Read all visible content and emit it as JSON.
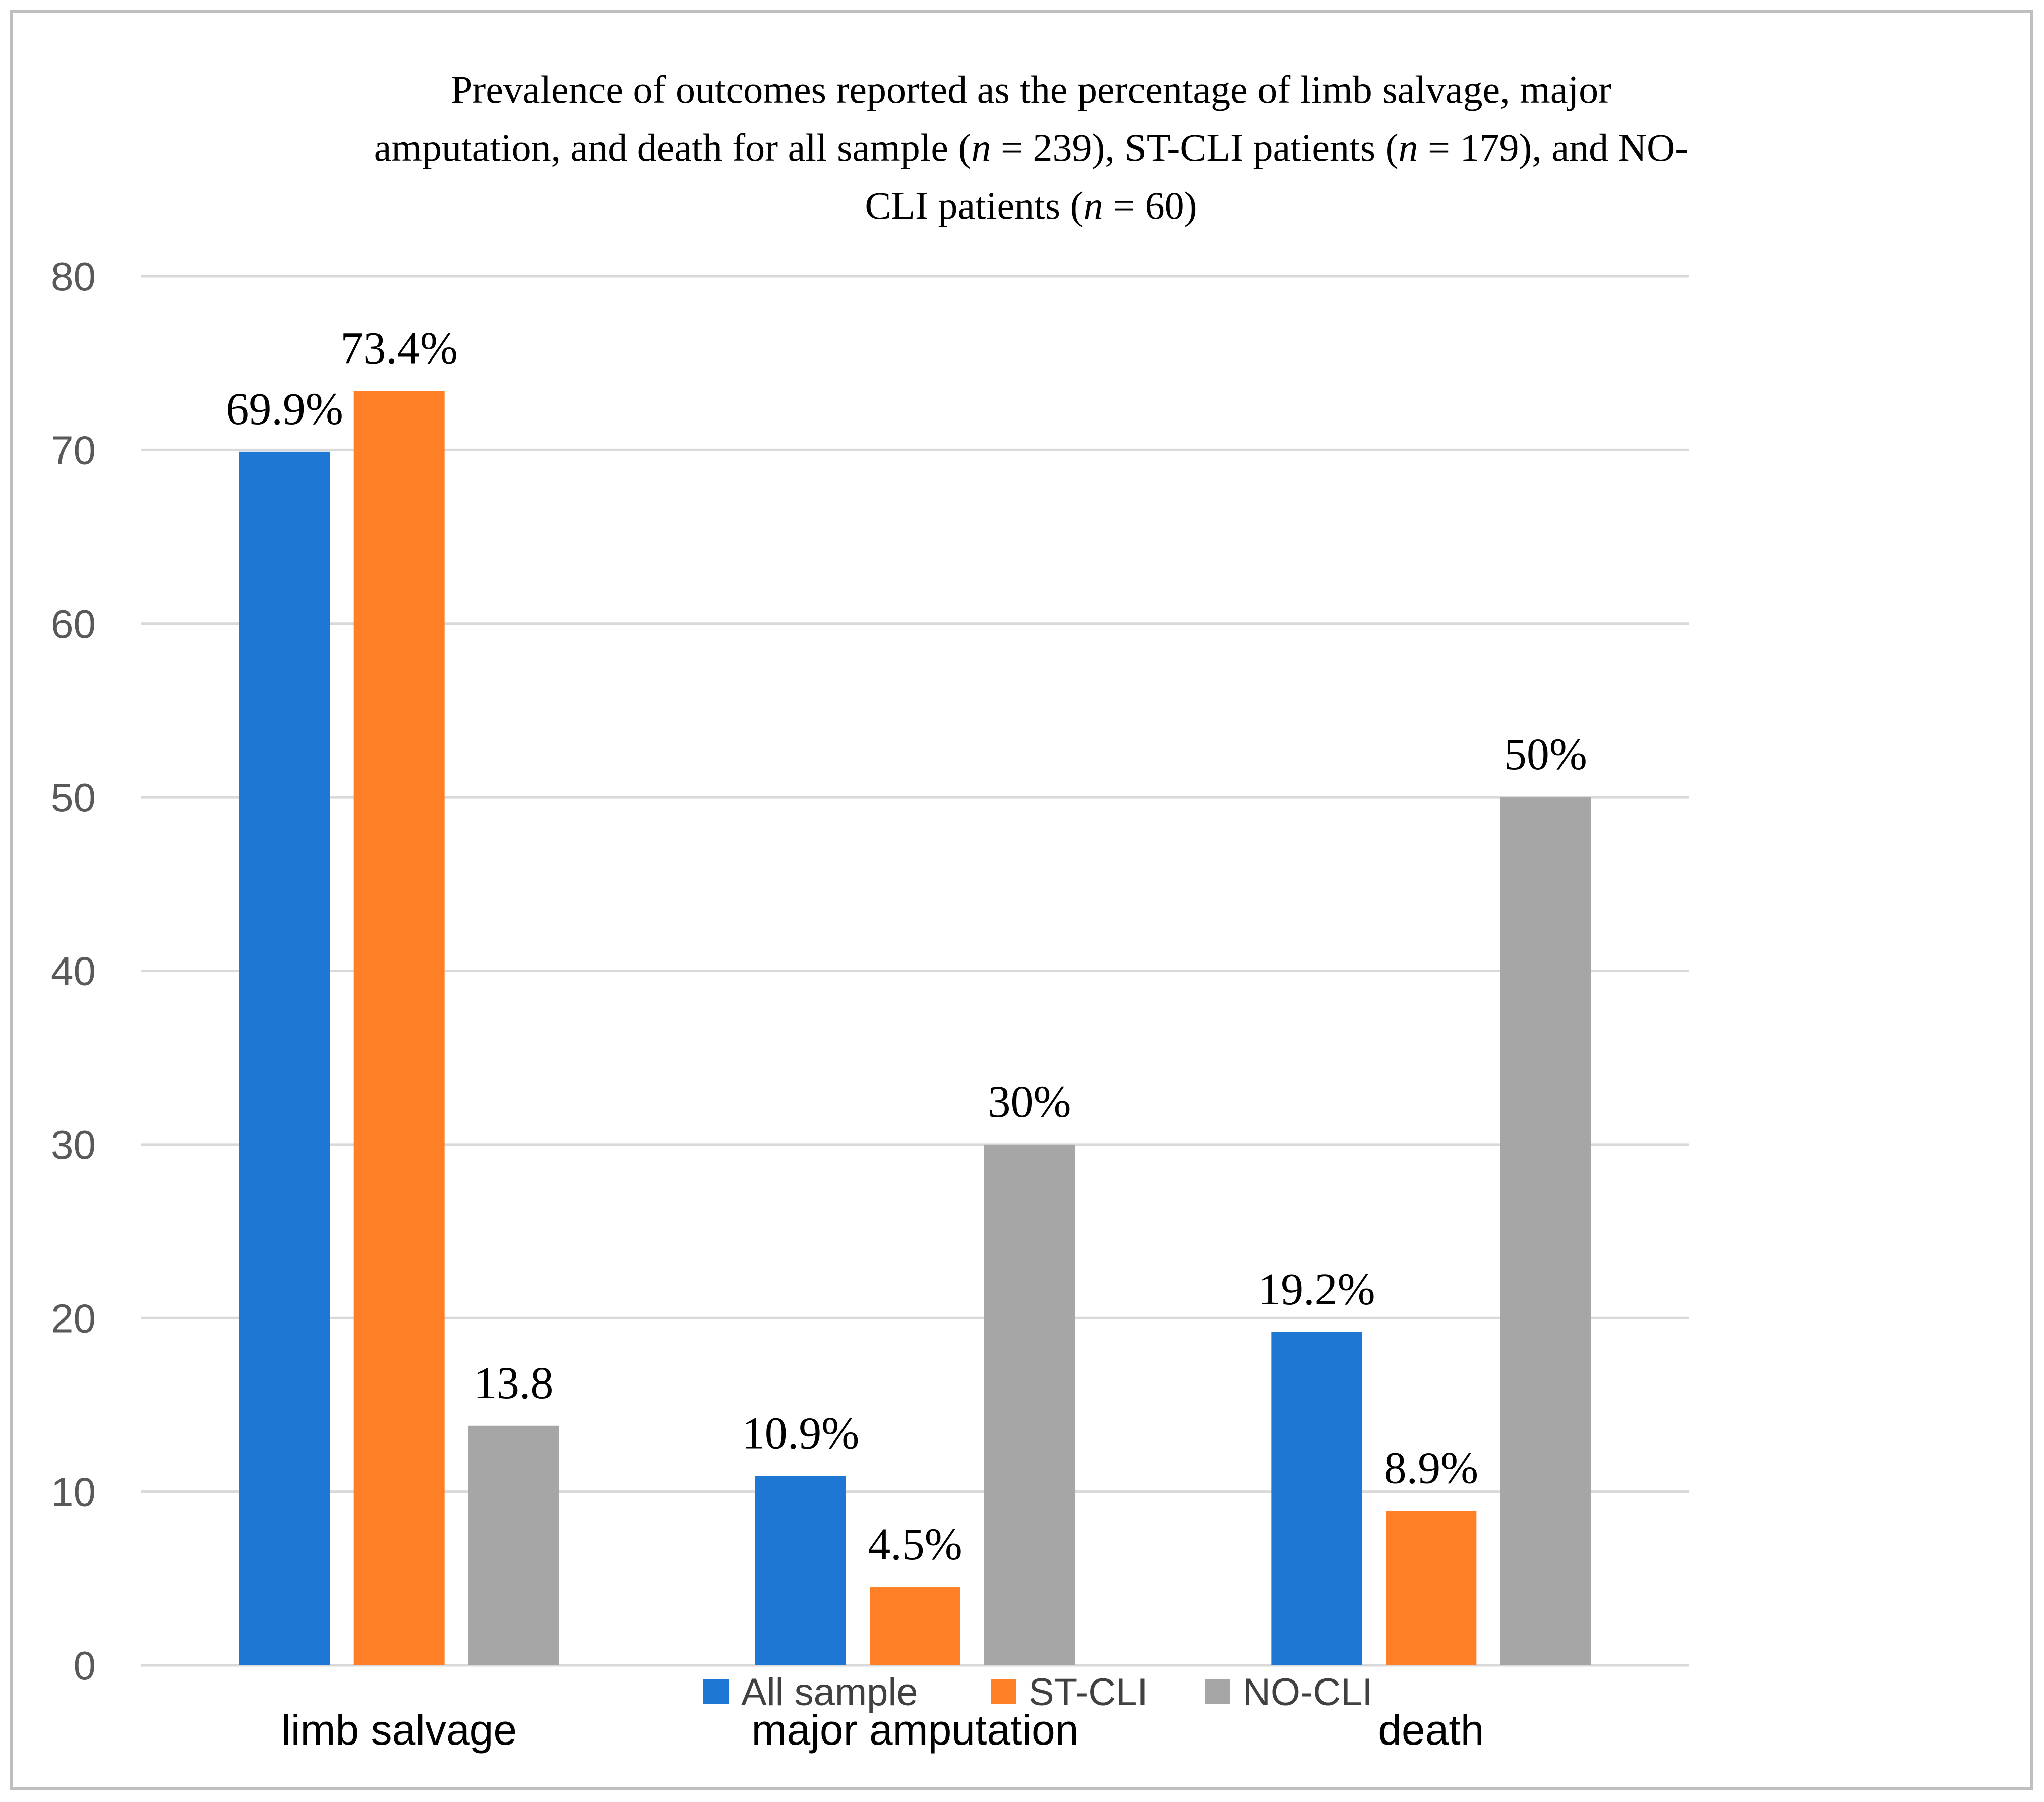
{
  "chart_data": {
    "type": "bar",
    "title": {
      "line1": "Prevalence of outcomes reported as the percentage of limb salvage, major",
      "line2_a": "amputation, and death for all sample (",
      "n": "n",
      "line2_b": " = 239), ST-CLI patients (",
      "line2_c": " = 179), and NO-",
      "line3_a": "CLI patients (",
      "line3_b": " = 60)"
    },
    "categories": [
      "limb salvage",
      "major amputation",
      "death"
    ],
    "series": [
      {
        "name": "All sample",
        "color": "#1f77d4",
        "values": [
          69.9,
          10.9,
          19.2
        ],
        "labels": [
          "69.9%",
          "10.9%",
          "19.2%"
        ]
      },
      {
        "name": "ST-CLI",
        "color": "#ff7f27",
        "values": [
          73.4,
          4.5,
          8.9
        ],
        "labels": [
          "73.4%",
          "4.5%",
          "8.9%"
        ]
      },
      {
        "name": "NO-CLI",
        "color": "#a6a6a6",
        "values": [
          13.8,
          30,
          50
        ],
        "labels": [
          "13.8",
          "30%",
          "50%"
        ]
      }
    ],
    "yticks": [
      0,
      10,
      20,
      30,
      40,
      50,
      60,
      70,
      80
    ],
    "ylim": [
      0,
      80
    ],
    "xlabel": "",
    "ylabel": "",
    "grid": true,
    "legend_position": "bottom"
  }
}
